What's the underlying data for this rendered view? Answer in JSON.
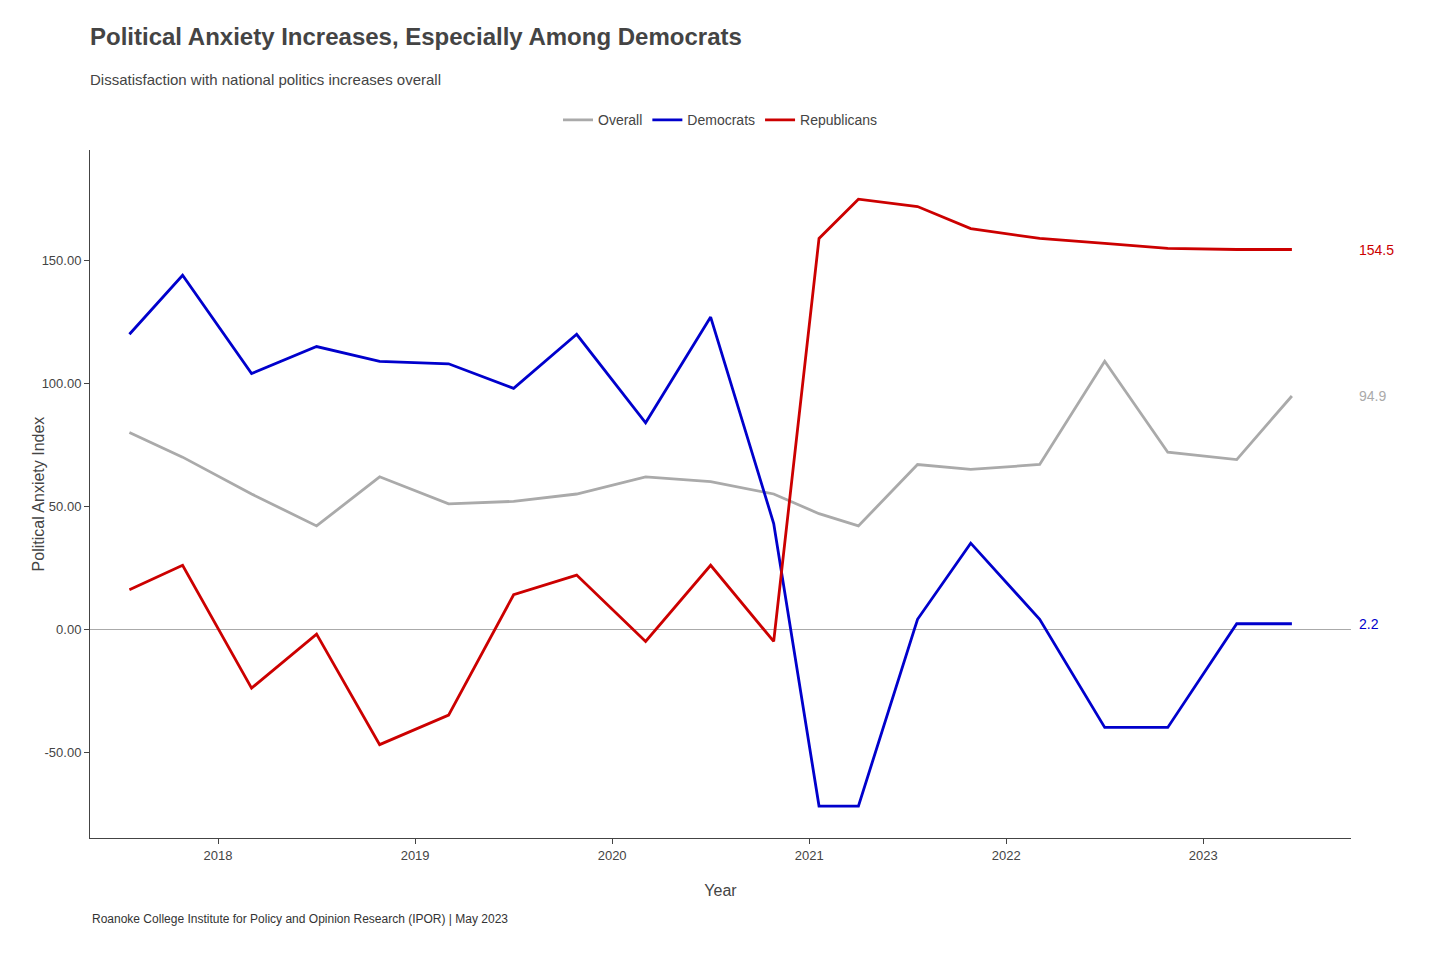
{
  "chart_data": {
    "type": "line",
    "title": "Political Anxiety Increases, Especially Among Democrats",
    "subtitle": "Dissatisfaction with national politics increases overall",
    "xlabel": "Year",
    "ylabel": "Political Anxiety Index",
    "source": "Roanoke College Institute for Policy and Opinion Research (IPOR) | May 2023",
    "x": [
      2017.55,
      2017.82,
      2018.17,
      2018.5,
      2018.82,
      2019.17,
      2019.5,
      2019.82,
      2020.17,
      2020.5,
      2020.82,
      2021.05,
      2021.25,
      2021.55,
      2021.82,
      2022.17,
      2022.5,
      2022.82,
      2023.17,
      2023.45
    ],
    "series": [
      {
        "name": "Overall",
        "color": "#aaaaaa",
        "values": [
          80,
          70,
          55,
          42,
          62,
          51,
          52,
          55,
          62,
          60,
          55,
          47,
          42,
          67,
          65,
          67,
          109,
          72,
          69,
          94.9
        ]
      },
      {
        "name": "Democrats",
        "color": "#0000cc",
        "values": [
          120,
          144,
          104,
          115,
          109,
          108,
          98,
          120,
          84,
          127,
          43,
          -72,
          -72,
          4,
          35,
          4,
          -40,
          -40,
          2.2,
          2.2
        ]
      },
      {
        "name": "Republicans",
        "color": "#cc0000",
        "values": [
          16,
          26,
          -24,
          -2,
          -47,
          -35,
          14,
          22,
          -5,
          26,
          -5,
          159,
          175,
          172,
          163,
          159,
          157,
          155,
          154.5,
          154.5
        ]
      }
    ],
    "annotations": [
      {
        "text": "154.5",
        "y": 154.5,
        "color": "#cc0000"
      },
      {
        "text": "94.9",
        "y": 94.9,
        "color": "#aaaaaa"
      },
      {
        "text": "2.2",
        "y": 2.2,
        "color": "#0000cc"
      }
    ],
    "xlim": [
      2017.35,
      2023.75
    ],
    "xticks": [
      2018,
      2019,
      2020,
      2021,
      2022,
      2023
    ],
    "ylim": [
      -85,
      195
    ],
    "yticks": [
      {
        "value": -50,
        "label": "-50.00"
      },
      {
        "value": 0,
        "label": "0.00"
      },
      {
        "value": 50,
        "label": "50.00"
      },
      {
        "value": 100,
        "label": "100.00"
      },
      {
        "value": 150,
        "label": "150.00"
      }
    ],
    "grid": false,
    "legend": "top"
  }
}
